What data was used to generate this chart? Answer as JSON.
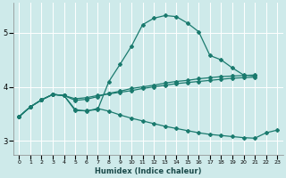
{
  "xlabel": "Humidex (Indice chaleur)",
  "xlim": [
    -0.5,
    23.5
  ],
  "ylim": [
    2.75,
    5.55
  ],
  "yticks": [
    3,
    4,
    5
  ],
  "xticks": [
    0,
    1,
    2,
    3,
    4,
    5,
    6,
    7,
    8,
    9,
    10,
    11,
    12,
    13,
    14,
    15,
    16,
    17,
    18,
    19,
    20,
    21,
    22,
    23
  ],
  "bg_color": "#ceeaea",
  "grid_color": "#ffffff",
  "line_color": "#1a7a6e",
  "curves": [
    {
      "x": [
        0,
        1,
        2,
        3,
        4,
        5,
        6,
        7,
        8,
        9,
        10,
        11,
        12,
        13,
        14,
        15,
        16,
        17,
        18,
        19,
        20,
        21
      ],
      "y": [
        3.45,
        3.63,
        3.76,
        3.86,
        3.84,
        3.56,
        3.56,
        3.58,
        4.1,
        4.42,
        4.75,
        5.15,
        5.27,
        5.32,
        5.3,
        5.18,
        5.02,
        4.58,
        4.5,
        4.35,
        4.22,
        4.2
      ]
    },
    {
      "x": [
        0,
        1,
        2,
        3,
        4,
        5,
        6,
        7,
        8,
        9,
        10,
        11,
        12,
        13,
        14,
        15,
        16,
        17,
        18,
        19,
        20,
        21
      ],
      "y": [
        3.45,
        3.63,
        3.76,
        3.86,
        3.84,
        3.75,
        3.77,
        3.82,
        3.88,
        3.92,
        3.97,
        4.0,
        4.03,
        4.07,
        4.1,
        4.12,
        4.15,
        4.17,
        4.19,
        4.2,
        4.21,
        4.22
      ]
    },
    {
      "x": [
        0,
        1,
        2,
        3,
        4,
        5,
        6,
        7,
        8,
        9,
        10,
        11,
        12,
        13,
        14,
        15,
        16,
        17,
        18,
        19,
        20,
        21
      ],
      "y": [
        3.45,
        3.63,
        3.76,
        3.86,
        3.84,
        3.78,
        3.8,
        3.84,
        3.87,
        3.9,
        3.93,
        3.97,
        4.0,
        4.03,
        4.06,
        4.08,
        4.1,
        4.12,
        4.14,
        4.16,
        4.17,
        4.18
      ]
    },
    {
      "x": [
        0,
        1,
        2,
        3,
        4,
        5,
        6,
        7,
        8,
        9,
        10,
        11,
        12,
        13,
        14,
        15,
        16,
        17,
        18,
        19,
        20,
        21,
        22,
        23
      ],
      "y": [
        3.45,
        3.63,
        3.76,
        3.86,
        3.84,
        3.58,
        3.55,
        3.6,
        3.55,
        3.48,
        3.42,
        3.37,
        3.32,
        3.27,
        3.23,
        3.19,
        3.15,
        3.12,
        3.1,
        3.08,
        3.06,
        3.05,
        3.15,
        3.2
      ]
    }
  ]
}
